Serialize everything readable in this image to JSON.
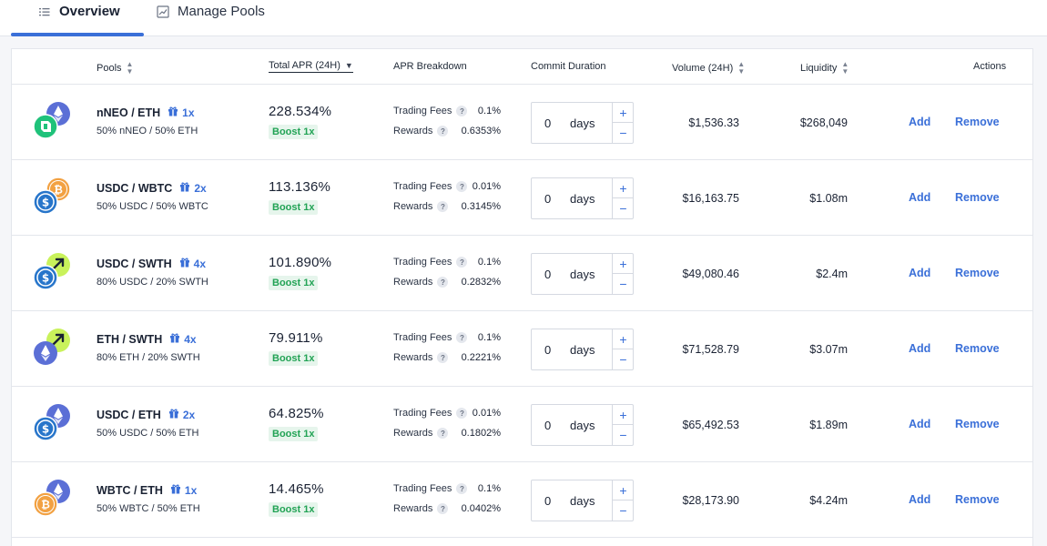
{
  "tabs": [
    {
      "label": "Overview",
      "icon": "list-icon",
      "active": true
    },
    {
      "label": "Manage Pools",
      "icon": "chart-icon",
      "active": false
    }
  ],
  "table": {
    "headers": {
      "pools": "Pools",
      "apr": "Total APR (24H)",
      "breakdown": "APR Breakdown",
      "commit": "Commit Duration",
      "volume": "Volume (24H)",
      "liquidity": "Liquidity",
      "actions": "Actions"
    },
    "labels": {
      "trading_fees": "Trading Fees",
      "rewards": "Rewards",
      "days": "days",
      "add": "Add",
      "remove": "Remove",
      "help": "?",
      "plus": "+",
      "minus": "−"
    },
    "rows": [
      {
        "name": "nNEO / ETH",
        "multiplier": "1x",
        "weights": "50% nNEO / 50% ETH",
        "apr": "228.534%",
        "boost": "Boost 1x",
        "trading_fees": "0.1%",
        "rewards": "0.6353%",
        "commit": "0",
        "volume": "$1,536.33",
        "liquidity": "$268,049",
        "icons": [
          "neo",
          "eth"
        ]
      },
      {
        "name": "USDC / WBTC",
        "multiplier": "2x",
        "weights": "50% USDC / 50% WBTC",
        "apr": "113.136%",
        "boost": "Boost 1x",
        "trading_fees": "0.01%",
        "rewards": "0.3145%",
        "commit": "0",
        "volume": "$16,163.75",
        "liquidity": "$1.08m",
        "icons": [
          "usdc",
          "btc"
        ]
      },
      {
        "name": "USDC / SWTH",
        "multiplier": "4x",
        "weights": "80% USDC / 20% SWTH",
        "apr": "101.890%",
        "boost": "Boost 1x",
        "trading_fees": "0.1%",
        "rewards": "0.2832%",
        "commit": "0",
        "volume": "$49,080.46",
        "liquidity": "$2.4m",
        "icons": [
          "usdc",
          "swth"
        ]
      },
      {
        "name": "ETH / SWTH",
        "multiplier": "4x",
        "weights": "80% ETH / 20% SWTH",
        "apr": "79.911%",
        "boost": "Boost 1x",
        "trading_fees": "0.1%",
        "rewards": "0.2221%",
        "commit": "0",
        "volume": "$71,528.79",
        "liquidity": "$3.07m",
        "icons": [
          "eth",
          "swth"
        ]
      },
      {
        "name": "USDC / ETH",
        "multiplier": "2x",
        "weights": "50% USDC / 50% ETH",
        "apr": "64.825%",
        "boost": "Boost 1x",
        "trading_fees": "0.01%",
        "rewards": "0.1802%",
        "commit": "0",
        "volume": "$65,492.53",
        "liquidity": "$1.89m",
        "icons": [
          "usdc",
          "eth"
        ]
      },
      {
        "name": "WBTC / ETH",
        "multiplier": "1x",
        "weights": "50% WBTC / 50% ETH",
        "apr": "14.465%",
        "boost": "Boost 1x",
        "trading_fees": "0.1%",
        "rewards": "0.0402%",
        "commit": "0",
        "volume": "$28,173.90",
        "liquidity": "$4.24m",
        "icons": [
          "btc",
          "eth"
        ]
      }
    ]
  },
  "colors": {
    "accent": "#3a6fd8",
    "boost_bg": "#e6f5ec",
    "boost_text": "#22a355",
    "eth": "#5b6fd6",
    "usdc": "#2775ca",
    "btc": "#f2a142",
    "neo": "#1fc27a",
    "swth": "#c9f25b"
  }
}
